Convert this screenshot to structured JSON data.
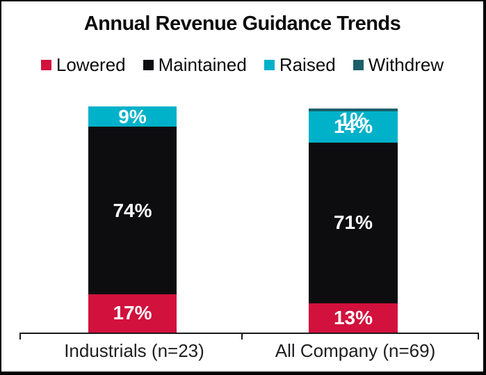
{
  "chart_data": {
    "type": "bar",
    "stacked": true,
    "title": "Annual Revenue Guidance Trends",
    "categories": [
      "Industrials (n=23)",
      "All Company (n=69)"
    ],
    "series": [
      {
        "name": "Lowered",
        "color": "#d2113d",
        "values": [
          17,
          13
        ]
      },
      {
        "name": "Maintained",
        "color": "#0d0d10",
        "values": [
          74,
          71
        ]
      },
      {
        "name": "Raised",
        "color": "#00b1ca",
        "values": [
          9,
          14
        ]
      },
      {
        "name": "Withdrew",
        "color": "#1b5f69",
        "values": [
          0,
          1
        ]
      }
    ],
    "value_suffix": "%",
    "ylim": [
      0,
      100
    ],
    "grid": false,
    "legend_position": "top",
    "label_color": "#ffffff"
  }
}
